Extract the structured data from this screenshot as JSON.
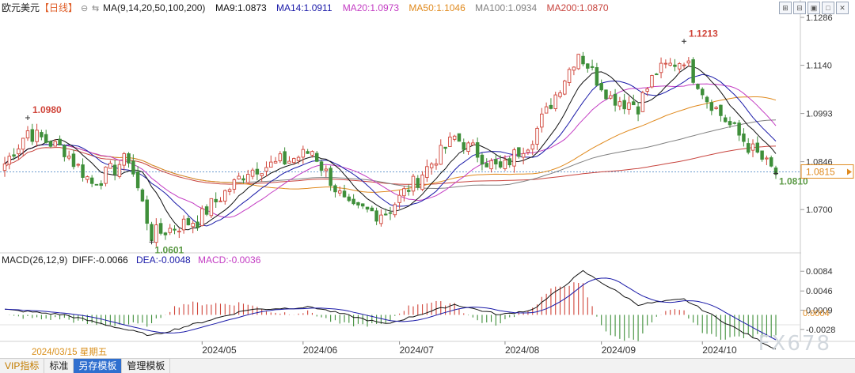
{
  "header": {
    "symbol": "欧元美元",
    "period": "【日线】",
    "ma_params": "MA(9,14,20,50,100,200)",
    "ma_values": [
      {
        "label": "MA9:1.0873",
        "color": "#111111"
      },
      {
        "label": "MA14:1.0911",
        "color": "#1a1aa8"
      },
      {
        "label": "MA20:1.0973",
        "color": "#c33cc3"
      },
      {
        "label": "MA50:1.1046",
        "color": "#e08a1e"
      },
      {
        "label": "MA100:1.0934",
        "color": "#808080"
      },
      {
        "label": "MA200:1.0870",
        "color": "#c8443e"
      }
    ],
    "tool_icons": [
      "zoom-icon",
      "indicator-icon",
      "layout-icon",
      "maximize-icon",
      "close-icon"
    ]
  },
  "price_axis": {
    "ticks": [
      "1.1286",
      "1.1140",
      "1.0993",
      "1.0846",
      "1.0700"
    ],
    "current_price": "1.0815"
  },
  "macd_header": {
    "params": "MACD(26,12,9)",
    "diff": "DIFF:-0.0066",
    "dea": "DEA:-0.0048",
    "macd": "MACD:-0.0036"
  },
  "macd_axis": {
    "ticks": [
      "0.0084",
      "0.0046",
      "0.0009",
      "-0.0028"
    ],
    "current": "0.0004"
  },
  "x_axis": {
    "labels": [
      "2024/05",
      "2024/06",
      "2024/07",
      "2024/08",
      "2024/09",
      "2024/10"
    ]
  },
  "cursor_date": "2024/03/15 星期五",
  "watermark": "FX678",
  "bottom_bar": {
    "buttons": [
      "VIP指标",
      "标准",
      "另存模板",
      "管理模板"
    ],
    "active_index": 2
  },
  "colors": {
    "up": "#d0453a",
    "down": "#3f8f3a",
    "ma9": "#111111",
    "ma14": "#1a1aa8",
    "ma20": "#c33cc3",
    "ma50": "#e08a1e",
    "ma100": "#808080",
    "ma200": "#c8443e",
    "diff": "#111111",
    "dea": "#1a1aa8",
    "accent_price": "#e08a1e"
  },
  "chart_data": {
    "type": "candlestick",
    "instrument": "欧元美元",
    "period": "日线",
    "y_range": [
      1.058,
      1.1286
    ],
    "annotations": [
      {
        "date": "2024/03/08",
        "price": 1.098,
        "label": "1.0980"
      },
      {
        "date": "2024/04/16",
        "price": 1.0601,
        "label": "1.0601"
      },
      {
        "date": "2024/09/25",
        "price": 1.1213,
        "label": "1.1213"
      },
      {
        "date": "2024/10/23",
        "price": 1.081,
        "label": "1.0810"
      }
    ],
    "close_anchors": [
      [
        "2024/03/01",
        1.084
      ],
      [
        "2024/03/08",
        1.094
      ],
      [
        "2024/03/20",
        1.088
      ],
      [
        "2024/03/28",
        1.078
      ],
      [
        "2024/04/09",
        1.086
      ],
      [
        "2024/04/16",
        1.062
      ],
      [
        "2024/04/30",
        1.067
      ],
      [
        "2024/05/15",
        1.082
      ],
      [
        "2024/05/28",
        1.085
      ],
      [
        "2024/06/04",
        1.088
      ],
      [
        "2024/06/14",
        1.07
      ],
      [
        "2024/06/26",
        1.069
      ],
      [
        "2024/07/02",
        1.075
      ],
      [
        "2024/07/17",
        1.092
      ],
      [
        "2024/07/31",
        1.082
      ],
      [
        "2024/08/09",
        1.092
      ],
      [
        "2024/08/23",
        1.118
      ],
      [
        "2024/09/03",
        1.104
      ],
      [
        "2024/09/11",
        1.102
      ],
      [
        "2024/09/17",
        1.112
      ],
      [
        "2024/09/25",
        1.116
      ],
      [
        "2024/10/02",
        1.104
      ],
      [
        "2024/10/10",
        1.094
      ],
      [
        "2024/10/23",
        1.081
      ]
    ],
    "macd_anchors": [
      [
        "2024/03/01",
        0.001
      ],
      [
        "2024/03/20",
        0.0
      ],
      [
        "2024/04/16",
        -0.004
      ],
      [
        "2024/05/15",
        0.001
      ],
      [
        "2024/06/04",
        0.0015
      ],
      [
        "2024/06/26",
        -0.0018
      ],
      [
        "2024/07/17",
        0.002
      ],
      [
        "2024/07/31",
        0.0
      ],
      [
        "2024/08/09",
        0.001
      ],
      [
        "2024/08/26",
        0.0084
      ],
      [
        "2024/09/11",
        0.002
      ],
      [
        "2024/09/25",
        0.003
      ],
      [
        "2024/10/10",
        -0.0025
      ],
      [
        "2024/10/23",
        -0.0066
      ]
    ],
    "moving_averages": [
      "MA9",
      "MA14",
      "MA20",
      "MA50",
      "MA100",
      "MA200"
    ],
    "indicator": "MACD(26,12,9)"
  }
}
